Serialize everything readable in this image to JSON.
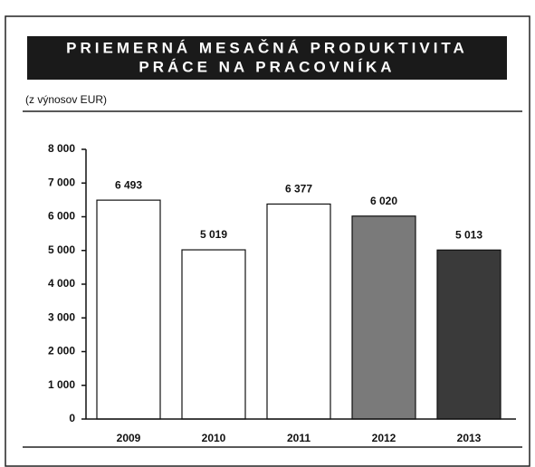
{
  "chart_data": {
    "type": "bar",
    "title": [
      "PRIEMERNÁ MESAČNÁ PRODUKTIVITA",
      "PRÁCE NA PRACOVNÍKA"
    ],
    "subtitle": "(z výnosov EUR)",
    "categories": [
      "2009",
      "2010",
      "2011",
      "2012",
      "2013"
    ],
    "values": [
      6493,
      5019,
      6377,
      6020,
      5013
    ],
    "value_labels": [
      "6 493",
      "5 019",
      "6 377",
      "6 020",
      "5 013"
    ],
    "colors": [
      "#ffffff",
      "#ffffff",
      "#ffffff",
      "#7a7a7a",
      "#3a3a3a"
    ],
    "ylim": [
      0,
      8000
    ],
    "yticks": [
      0,
      {
        "value": 1000,
        "label": "1 000"
      },
      {
        "value": 2000,
        "label": "2 000"
      },
      {
        "value": 3000,
        "label": "3 000"
      },
      {
        "value": 4000,
        "label": "4 000"
      },
      {
        "value": 5000,
        "label": "5 000"
      },
      {
        "value": 6000,
        "label": "6 000"
      },
      {
        "value": 7000,
        "label": "7 000"
      },
      {
        "value": 8000,
        "label": "8 000"
      }
    ],
    "grid": false
  }
}
